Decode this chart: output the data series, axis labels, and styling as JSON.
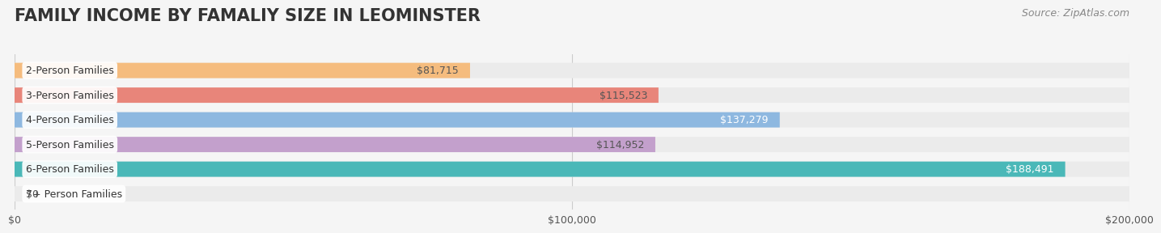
{
  "title": "FAMILY INCOME BY FAMALIY SIZE IN LEOMINSTER",
  "source": "Source: ZipAtlas.com",
  "categories": [
    "2-Person Families",
    "3-Person Families",
    "4-Person Families",
    "5-Person Families",
    "6-Person Families",
    "7+ Person Families"
  ],
  "values": [
    81715,
    115523,
    137279,
    114952,
    188491,
    0
  ],
  "bar_colors": [
    "#f5bc7e",
    "#e8857a",
    "#8eb8e0",
    "#c3a0cc",
    "#4ab8b8",
    "#c5c8e8"
  ],
  "label_colors": [
    "#555555",
    "#555555",
    "#ffffff",
    "#555555",
    "#ffffff",
    "#555555"
  ],
  "xlim": [
    0,
    200000
  ],
  "xticks": [
    0,
    100000,
    200000
  ],
  "xtick_labels": [
    "$0",
    "$100,000",
    "$200,000"
  ],
  "background_color": "#f5f5f5",
  "bar_bg_color": "#ebebeb",
  "title_color": "#333333",
  "title_fontsize": 15,
  "label_fontsize": 9,
  "category_fontsize": 9,
  "source_fontsize": 9,
  "bar_height": 0.62,
  "value_labels": [
    "$81,715",
    "$115,523",
    "$137,279",
    "$114,952",
    "$188,491",
    "$0"
  ]
}
